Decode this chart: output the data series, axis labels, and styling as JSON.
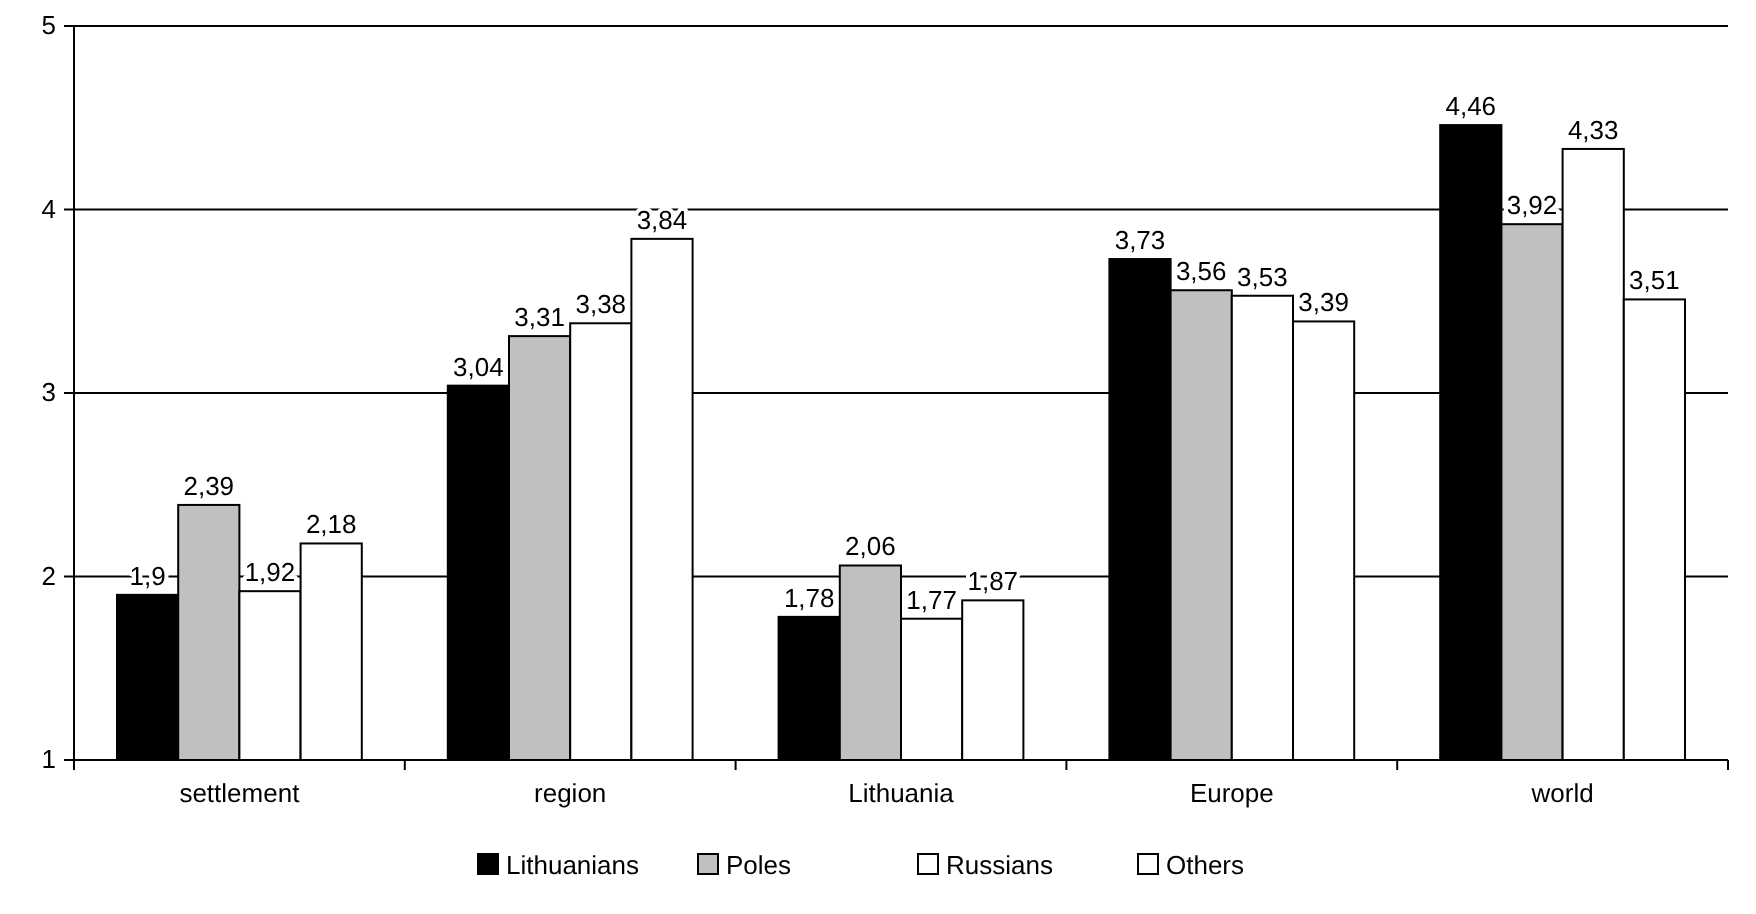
{
  "chart_data": {
    "type": "bar",
    "categories": [
      "settlement",
      "region",
      "Lithuania",
      "Europe",
      "world"
    ],
    "series": [
      {
        "name": "Lithuanians",
        "color": "#000000",
        "values": [
          1.9,
          3.04,
          1.78,
          3.73,
          4.46
        ],
        "value_labels": [
          "1,9",
          "3,04",
          "1,78",
          "3,73",
          "4,46"
        ]
      },
      {
        "name": "Poles",
        "color": "#c0c0c0",
        "values": [
          2.39,
          3.31,
          2.06,
          3.56,
          3.92
        ],
        "value_labels": [
          "2,39",
          "3,31",
          "2,06",
          "3,56",
          "3,92"
        ]
      },
      {
        "name": "Russians",
        "color": "#ffffff",
        "values": [
          1.92,
          3.38,
          1.77,
          3.53,
          4.33
        ],
        "value_labels": [
          "1,92",
          "3,38",
          "1,77",
          "3,53",
          "4,33"
        ]
      },
      {
        "name": "Others",
        "color": "#ffffff",
        "values": [
          2.18,
          3.84,
          1.87,
          3.39,
          3.51
        ],
        "value_labels": [
          "2,18",
          "3,84",
          "1,87",
          "3,39",
          "3,51"
        ]
      }
    ],
    "ylim": [
      1,
      5
    ],
    "yticks": [
      1,
      2,
      3,
      4,
      5
    ],
    "grid": "y",
    "legend": "bottom"
  }
}
